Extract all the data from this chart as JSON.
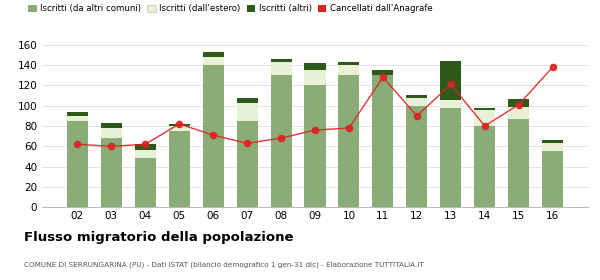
{
  "years": [
    "02",
    "03",
    "04",
    "05",
    "06",
    "07",
    "08",
    "09",
    "10",
    "11",
    "12",
    "13",
    "14",
    "15",
    "16"
  ],
  "iscritti_altri_comuni": [
    85,
    68,
    48,
    75,
    140,
    85,
    130,
    120,
    130,
    130,
    100,
    98,
    80,
    87,
    55
  ],
  "iscritti_estero": [
    5,
    10,
    8,
    5,
    8,
    18,
    13,
    15,
    10,
    0,
    8,
    8,
    16,
    12,
    8
  ],
  "iscritti_altri": [
    4,
    5,
    6,
    2,
    5,
    5,
    3,
    7,
    3,
    5,
    3,
    38,
    2,
    8,
    3
  ],
  "cancellati": [
    62,
    60,
    62,
    82,
    71,
    63,
    68,
    76,
    78,
    128,
    90,
    121,
    80,
    101,
    138
  ],
  "color_altri_comuni": "#8aad78",
  "color_estero": "#e8f0d8",
  "color_altri": "#2d5a1b",
  "color_cancellati": "#dd2222",
  "title": "Flusso migratorio della popolazione",
  "subtitle": "COMUNE DI SERRUNGARINA (PU) - Dati ISTAT (bilancio demografico 1 gen-31 dic) - Elaborazione TUTTITALIA.IT",
  "legend_labels": [
    "Iscritti (da altri comuni)",
    "Iscritti (dall'estero)",
    "Iscritti (altri)",
    "Cancellati dall'Anagrafe"
  ],
  "ylim": [
    0,
    160
  ],
  "yticks": [
    0,
    20,
    40,
    60,
    80,
    100,
    120,
    140,
    160
  ],
  "bg_color": "#f9f9f9"
}
